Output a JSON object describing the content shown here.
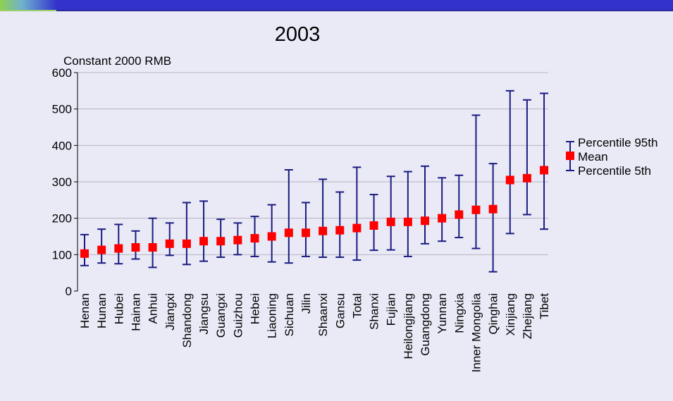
{
  "chart_data": {
    "type": "scatter",
    "title": "2003",
    "ylabel": "Constant 2000 RMB",
    "ylim": [
      0,
      600
    ],
    "yticks": [
      0,
      100,
      200,
      300,
      400,
      500,
      600
    ],
    "grid": true,
    "legend_position": "right",
    "colors": {
      "mean": "#ff0000",
      "range": "#1a1a80"
    },
    "categories": [
      "Henan",
      "Hunan",
      "Hubei",
      "Hainan",
      "Anhui",
      "Jiangxi",
      "Shandong",
      "Jiangsu",
      "Guangxi",
      "Guizhou",
      "Hebei",
      "Liaoning",
      "Sichuan",
      "Jilin",
      "Shaanxi",
      "Gansu",
      "Total",
      "Shanxi",
      "Fujian",
      "Heilongjiang",
      "Guangdong",
      "Yunnan",
      "Ningxia",
      "Inner Mongolia",
      "Qinghai",
      "Xinjiang",
      "Zhejiang",
      "Tibet"
    ],
    "series": [
      {
        "name": "Percentile 95th",
        "values": [
          155,
          170,
          183,
          165,
          200,
          187,
          243,
          247,
          197,
          187,
          205,
          237,
          333,
          243,
          307,
          272,
          340,
          265,
          315,
          328,
          343,
          311,
          318,
          483,
          350,
          550,
          525,
          543
        ]
      },
      {
        "name": "Mean",
        "values": [
          103,
          113,
          117,
          120,
          120,
          130,
          130,
          137,
          137,
          140,
          145,
          150,
          160,
          160,
          165,
          167,
          173,
          180,
          190,
          190,
          193,
          200,
          210,
          223,
          225,
          305,
          310,
          332
        ]
      },
      {
        "name": "Percentile 5th",
        "values": [
          70,
          77,
          75,
          88,
          65,
          98,
          73,
          82,
          93,
          100,
          95,
          80,
          77,
          95,
          93,
          93,
          85,
          112,
          113,
          95,
          130,
          137,
          147,
          117,
          53,
          158,
          210,
          170
        ]
      }
    ]
  }
}
